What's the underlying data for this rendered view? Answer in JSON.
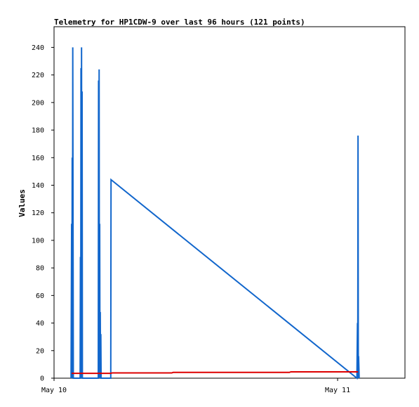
{
  "chart_data": {
    "type": "line",
    "title": "Telemetry for HP1CDW-9 over last 96 hours (121 points)",
    "xlabel": "",
    "ylabel": "Values",
    "ylim": [
      0,
      255
    ],
    "y_ticks": [
      0,
      20,
      40,
      60,
      80,
      100,
      120,
      140,
      160,
      180,
      200,
      220,
      240
    ],
    "x_ticks": [
      {
        "label": "May 10",
        "day": 0
      },
      {
        "label": "May 11",
        "day": 1
      }
    ],
    "xlim_days": [
      0,
      1.2375
    ],
    "grid": false,
    "legend": false,
    "series": [
      {
        "color": "#1166cc",
        "points": [
          [
            0.06,
            0
          ],
          [
            0.062,
            112
          ],
          [
            0.063,
            0
          ],
          [
            0.064,
            160
          ],
          [
            0.065,
            0
          ],
          [
            0.066,
            240
          ],
          [
            0.068,
            0
          ],
          [
            0.092,
            0
          ],
          [
            0.093,
            88
          ],
          [
            0.094,
            0
          ],
          [
            0.095,
            225
          ],
          [
            0.096,
            0
          ],
          [
            0.097,
            240
          ],
          [
            0.098,
            0
          ],
          [
            0.099,
            208
          ],
          [
            0.1,
            0
          ],
          [
            0.156,
            0
          ],
          [
            0.157,
            216
          ],
          [
            0.158,
            0
          ],
          [
            0.159,
            224
          ],
          [
            0.16,
            0
          ],
          [
            0.161,
            112
          ],
          [
            0.162,
            0
          ],
          [
            0.163,
            48
          ],
          [
            0.164,
            0
          ],
          [
            0.165,
            32
          ],
          [
            0.166,
            0
          ],
          [
            0.2,
            0
          ],
          [
            0.201,
            144
          ],
          [
            1.068,
            0
          ],
          [
            1.07,
            40
          ],
          [
            1.071,
            0
          ],
          [
            1.072,
            176
          ],
          [
            1.073,
            0
          ],
          [
            1.074,
            16
          ],
          [
            1.076,
            0
          ]
        ]
      },
      {
        "color": "#dd0000",
        "points": [
          [
            0.062,
            3.5
          ],
          [
            0.2,
            3.5
          ],
          [
            0.205,
            3.8
          ],
          [
            0.415,
            3.8
          ],
          [
            0.42,
            4.2
          ],
          [
            0.83,
            4.2
          ],
          [
            0.835,
            4.6
          ],
          [
            1.072,
            4.6
          ]
        ]
      }
    ]
  }
}
